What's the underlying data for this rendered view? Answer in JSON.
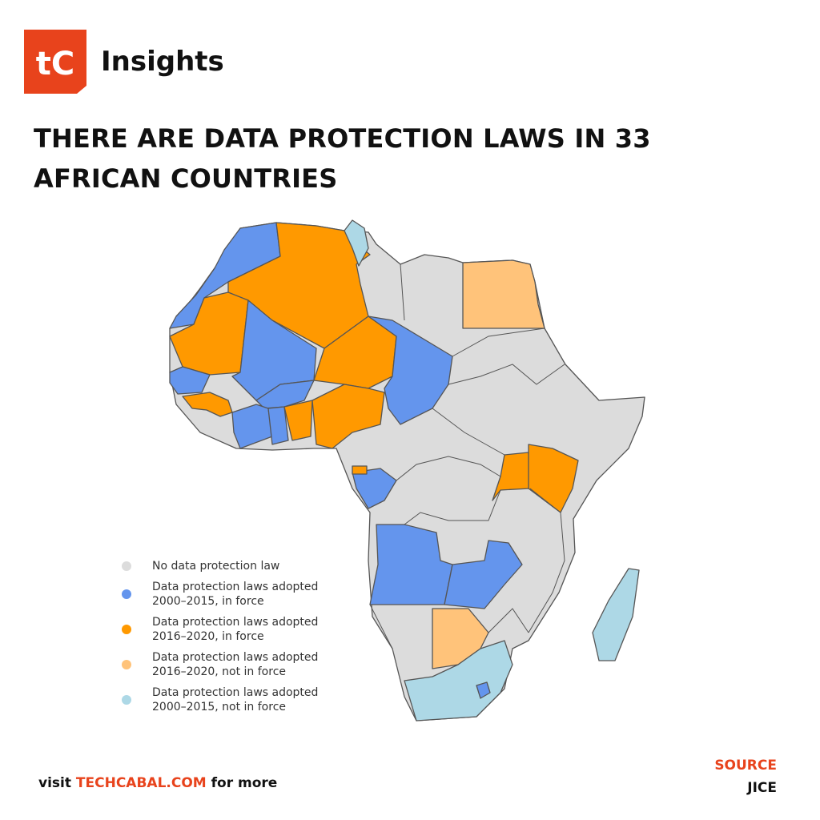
{
  "header": {
    "logo_text": "tC",
    "brand": "Insights",
    "brand_color": "#e8431c"
  },
  "headline_lines": [
    "THERE ARE DATA PROTECTION LAWS IN 33",
    "AFRICAN COUNTRIES"
  ],
  "legend": [
    {
      "line1": "No data protection law",
      "line2": "",
      "color": "#dcdcdc"
    },
    {
      "line1": "Data protection laws adopted",
      "line2": "2000–2015, in force",
      "color": "#6495ed"
    },
    {
      "line1": "Data protection laws adopted",
      "line2": "2016–2020, in force",
      "color": "#ff9900"
    },
    {
      "line1": "Data protection laws adopted",
      "line2": "2016–2020, not in force",
      "color": "#ffc37a"
    },
    {
      "line1": "Data protection laws adopted",
      "line2": "2000–2015, not in force",
      "color": "#add8e6"
    }
  ],
  "footer": {
    "visit": "visit",
    "link": "TECHCABAL.COM",
    "more": "for more"
  },
  "source": {
    "label": "SOURCE",
    "value": "JICE"
  }
}
